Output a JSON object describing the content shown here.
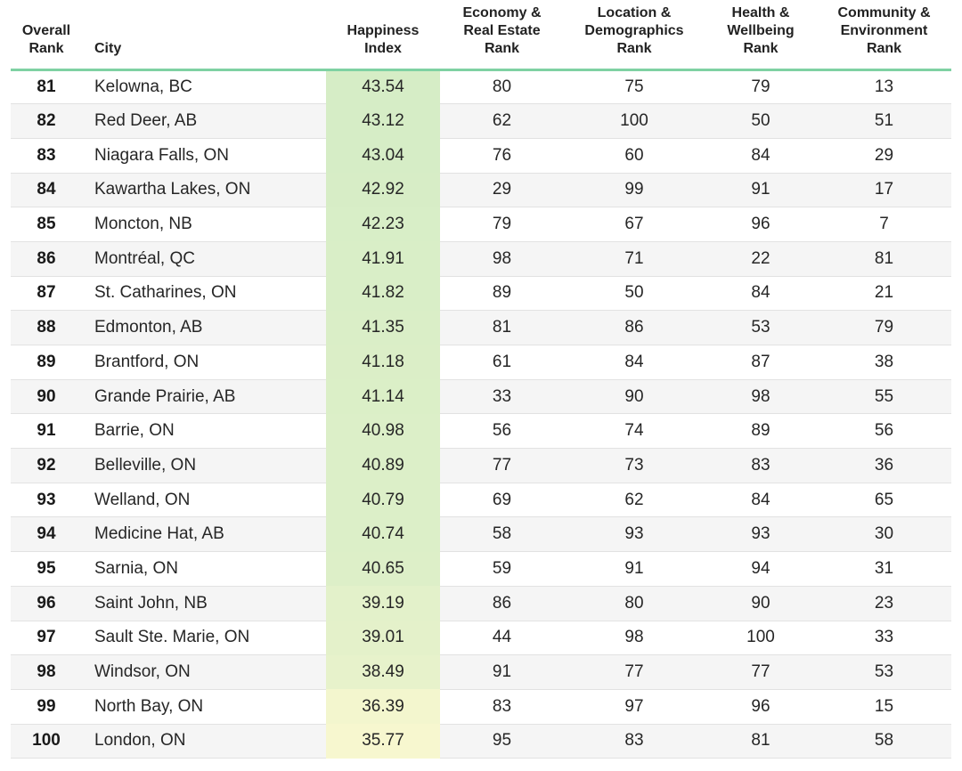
{
  "headers": {
    "rank": [
      "Overall",
      "Rank"
    ],
    "city": "City",
    "happiness": [
      "Happiness",
      "Index"
    ],
    "economy": [
      "Economy &",
      "Real Estate",
      "Rank"
    ],
    "location": [
      "Location &",
      "Demographics",
      "Rank"
    ],
    "health": [
      "Health &",
      "Wellbeing",
      "Rank"
    ],
    "community": [
      "Community &",
      "Environment",
      "Rank"
    ]
  },
  "colors": {
    "header_rule": "#7fd1a3",
    "happiness_high": "#d6edc6",
    "happiness_low": "#f7f7cf",
    "stripe": "#f5f5f5"
  },
  "rows": [
    {
      "rank": "81",
      "city": "Kelowna, BC",
      "happiness": "43.54",
      "economy": "80",
      "location": "75",
      "health": "79",
      "community": "13"
    },
    {
      "rank": "82",
      "city": "Red Deer, AB",
      "happiness": "43.12",
      "economy": "62",
      "location": "100",
      "health": "50",
      "community": "51"
    },
    {
      "rank": "83",
      "city": "Niagara Falls, ON",
      "happiness": "43.04",
      "economy": "76",
      "location": "60",
      "health": "84",
      "community": "29"
    },
    {
      "rank": "84",
      "city": "Kawartha Lakes, ON",
      "happiness": "42.92",
      "economy": "29",
      "location": "99",
      "health": "91",
      "community": "17"
    },
    {
      "rank": "85",
      "city": "Moncton, NB",
      "happiness": "42.23",
      "economy": "79",
      "location": "67",
      "health": "96",
      "community": "7"
    },
    {
      "rank": "86",
      "city": "Montréal, QC",
      "happiness": "41.91",
      "economy": "98",
      "location": "71",
      "health": "22",
      "community": "81"
    },
    {
      "rank": "87",
      "city": "St. Catharines, ON",
      "happiness": "41.82",
      "economy": "89",
      "location": "50",
      "health": "84",
      "community": "21"
    },
    {
      "rank": "88",
      "city": "Edmonton, AB",
      "happiness": "41.35",
      "economy": "81",
      "location": "86",
      "health": "53",
      "community": "79"
    },
    {
      "rank": "89",
      "city": "Brantford, ON",
      "happiness": "41.18",
      "economy": "61",
      "location": "84",
      "health": "87",
      "community": "38"
    },
    {
      "rank": "90",
      "city": "Grande Prairie, AB",
      "happiness": "41.14",
      "economy": "33",
      "location": "90",
      "health": "98",
      "community": "55"
    },
    {
      "rank": "91",
      "city": "Barrie, ON",
      "happiness": "40.98",
      "economy": "56",
      "location": "74",
      "health": "89",
      "community": "56"
    },
    {
      "rank": "92",
      "city": "Belleville, ON",
      "happiness": "40.89",
      "economy": "77",
      "location": "73",
      "health": "83",
      "community": "36"
    },
    {
      "rank": "93",
      "city": "Welland, ON",
      "happiness": "40.79",
      "economy": "69",
      "location": "62",
      "health": "84",
      "community": "65"
    },
    {
      "rank": "94",
      "city": "Medicine Hat, AB",
      "happiness": "40.74",
      "economy": "58",
      "location": "93",
      "health": "93",
      "community": "30"
    },
    {
      "rank": "95",
      "city": "Sarnia, ON",
      "happiness": "40.65",
      "economy": "59",
      "location": "91",
      "health": "94",
      "community": "31"
    },
    {
      "rank": "96",
      "city": "Saint John, NB",
      "happiness": "39.19",
      "economy": "86",
      "location": "80",
      "health": "90",
      "community": "23"
    },
    {
      "rank": "97",
      "city": "Sault Ste. Marie, ON",
      "happiness": "39.01",
      "economy": "44",
      "location": "98",
      "health": "100",
      "community": "33"
    },
    {
      "rank": "98",
      "city": "Windsor, ON",
      "happiness": "38.49",
      "economy": "91",
      "location": "77",
      "health": "77",
      "community": "53"
    },
    {
      "rank": "99",
      "city": "North Bay, ON",
      "happiness": "36.39",
      "economy": "83",
      "location": "97",
      "health": "96",
      "community": "15"
    },
    {
      "rank": "100",
      "city": "London, ON",
      "happiness": "35.77",
      "economy": "95",
      "location": "83",
      "health": "81",
      "community": "58"
    }
  ]
}
